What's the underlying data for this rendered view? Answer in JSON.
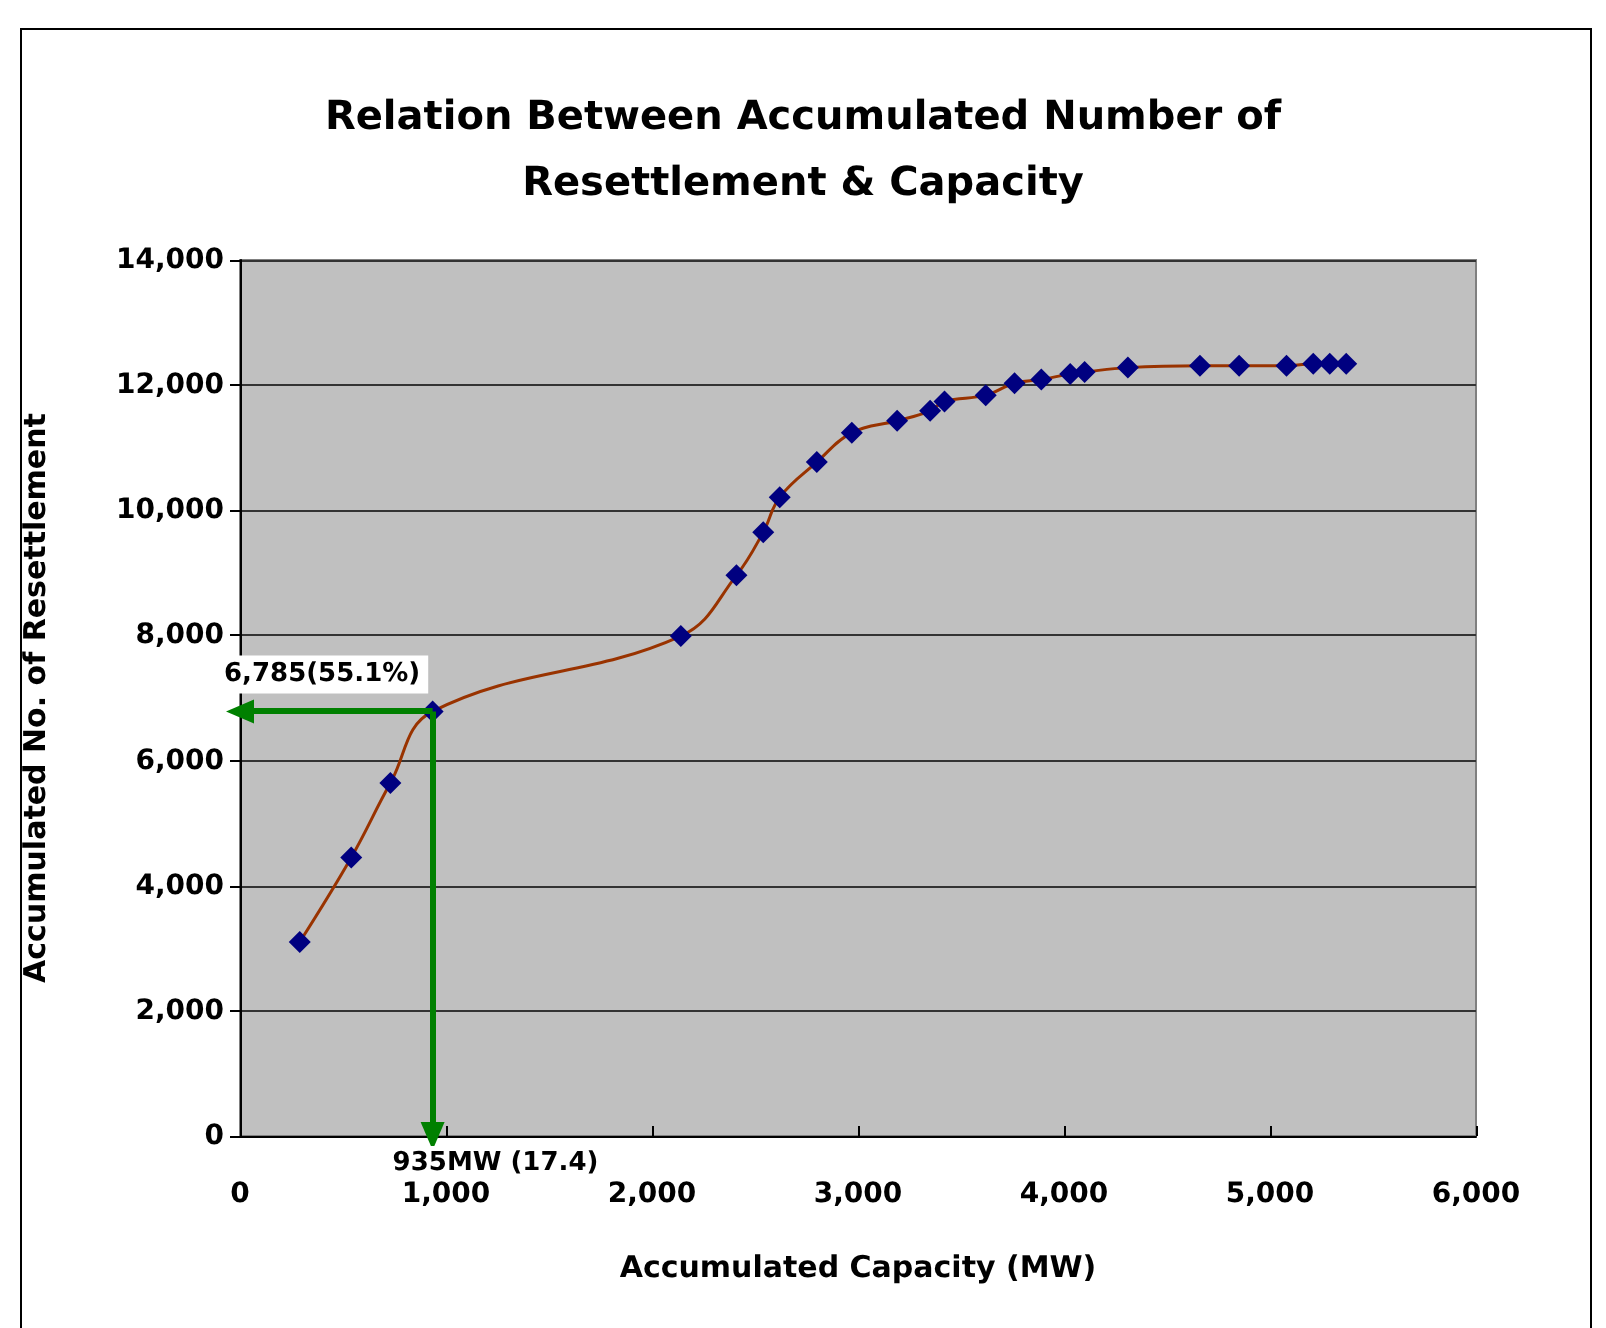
{
  "chart_data": {
    "type": "line",
    "title": "Relation Between Accumulated Number of\nResettlement & Capacity",
    "xlabel": "Accumulated Capacity (MW)",
    "ylabel": "Accumulated No. of Resettlement",
    "x": [
      290,
      540,
      730,
      935,
      2140,
      2410,
      2540,
      2620,
      2800,
      2970,
      3190,
      3350,
      3420,
      3620,
      3760,
      3890,
      4030,
      4100,
      4310,
      4660,
      4850,
      5080,
      5210,
      5290,
      5370
    ],
    "series": [
      {
        "color": "#993300",
        "values": [
          3100,
          4450,
          5640,
          6785,
          7990,
          8960,
          9650,
          10210,
          10770,
          11240,
          11430,
          11590,
          11740,
          11840,
          12030,
          12090,
          12180,
          12210,
          12280,
          12310,
          12310,
          12310,
          12340,
          12340,
          12340
        ]
      }
    ],
    "marker": "diamond",
    "xlim": [
      0,
      6000
    ],
    "xticks": [
      {
        "value": 0,
        "label": "0"
      },
      {
        "value": 1000,
        "label": "1,000"
      },
      {
        "value": 2000,
        "label": "2,000"
      },
      {
        "value": 3000,
        "label": "3,000"
      },
      {
        "value": 4000,
        "label": "4,000"
      },
      {
        "value": 5000,
        "label": "5,000"
      },
      {
        "value": 6000,
        "label": "6,000"
      }
    ],
    "ylim": [
      0,
      14000
    ],
    "yticks": [
      {
        "value": 0,
        "label": "0"
      },
      {
        "value": 2000,
        "label": "2,000"
      },
      {
        "value": 4000,
        "label": "4,000"
      },
      {
        "value": 6000,
        "label": "6,000"
      },
      {
        "value": 8000,
        "label": "8,000"
      },
      {
        "value": 10000,
        "label": "10,000"
      },
      {
        "value": 12000,
        "label": "12,000"
      },
      {
        "value": 14000,
        "label": "14,000"
      }
    ],
    "grid": "y",
    "annotations": [
      {
        "text": "6,785(55.1%)",
        "x": 935,
        "y": 6785
      },
      {
        "text": "935MW (17.4)",
        "x": 935,
        "y": 6785
      }
    ]
  }
}
